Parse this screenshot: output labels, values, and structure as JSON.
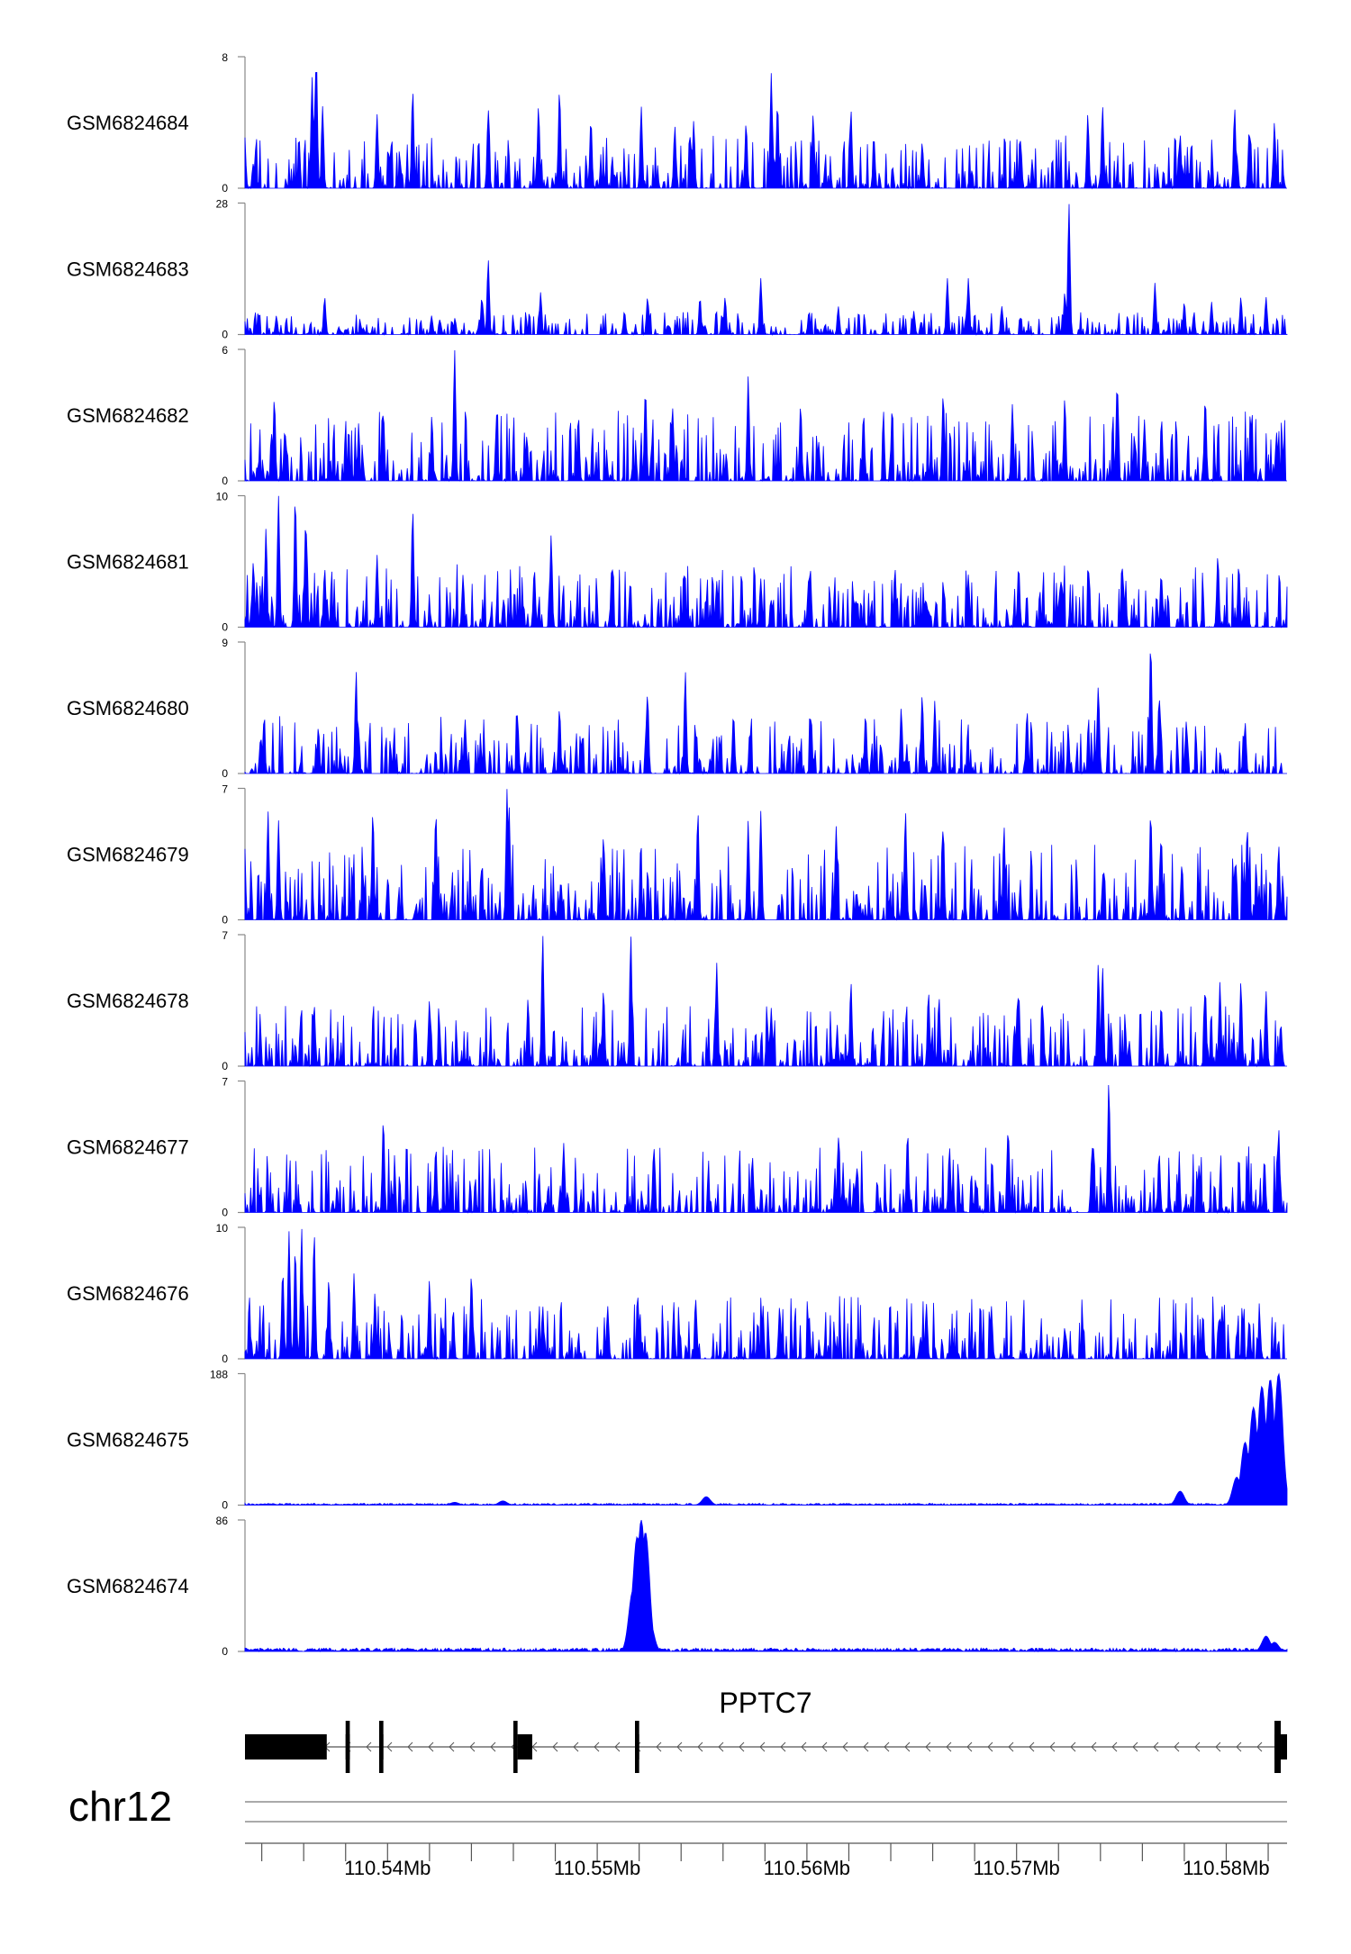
{
  "chart_data": {
    "type": "area",
    "title": "",
    "fill_color": "#0000ff",
    "x_unit": "Mb",
    "xlim": [
      110.5332,
      110.5829
    ],
    "tracks": [
      {
        "name": "GSM6824684",
        "ymax": 8,
        "ymin": 0,
        "ymax_label": "8",
        "ymin_label": "0",
        "peaks": [
          [
            110.5366,
            8.0
          ],
          [
            110.5364,
            6.8
          ],
          [
            110.5369,
            5.0
          ],
          [
            110.5365,
            4.7
          ],
          [
            110.5337,
            2.0
          ],
          [
            110.5412,
            6.0
          ],
          [
            110.5395,
            4.5
          ],
          [
            110.5448,
            4.8
          ],
          [
            110.5482,
            6.0
          ],
          [
            110.5472,
            5.0
          ],
          [
            110.5497,
            4.2
          ],
          [
            110.5521,
            5.0
          ],
          [
            110.5537,
            3.8
          ],
          [
            110.5546,
            4.1
          ],
          [
            110.5571,
            4.0
          ],
          [
            110.5583,
            7.0
          ],
          [
            110.5586,
            5.2
          ],
          [
            110.5603,
            4.5
          ],
          [
            110.5621,
            4.8
          ],
          [
            110.5632,
            3.0
          ],
          [
            110.5655,
            2.8
          ],
          [
            110.5702,
            2.6
          ],
          [
            110.5741,
            5.0
          ],
          [
            110.5734,
            4.5
          ],
          [
            110.5778,
            3.3
          ],
          [
            110.5804,
            4.9
          ],
          [
            110.5811,
            3.6
          ],
          [
            110.5823,
            4.0
          ]
        ],
        "noise_level": 2.0
      },
      {
        "name": "GSM6824683",
        "ymax": 28,
        "ymin": 0,
        "ymax_label": "28",
        "ymin_label": "0",
        "peaks": [
          [
            110.5725,
            28.0
          ],
          [
            110.5723,
            9.0
          ],
          [
            110.5524,
            8.0
          ],
          [
            110.5549,
            8.0
          ],
          [
            110.5561,
            8.0
          ],
          [
            110.5513,
            5.0
          ],
          [
            110.5347,
            4.0
          ],
          [
            110.537,
            8.0
          ],
          [
            110.5448,
            16.0
          ],
          [
            110.5445,
            8.0
          ],
          [
            110.5421,
            4.0
          ],
          [
            110.5473,
            9.0
          ],
          [
            110.5578,
            12.0
          ],
          [
            110.5601,
            5.0
          ],
          [
            110.5615,
            6.0
          ],
          [
            110.5651,
            5.0
          ],
          [
            110.5667,
            12.0
          ],
          [
            110.5677,
            12.0
          ],
          [
            110.5693,
            6.0
          ],
          [
            110.5766,
            11.0
          ],
          [
            110.578,
            7.0
          ],
          [
            110.5793,
            7.0
          ],
          [
            110.5807,
            8.0
          ],
          [
            110.5819,
            8.0
          ]
        ],
        "noise_level": 3.0
      },
      {
        "name": "GSM6824682",
        "ymax": 6,
        "ymin": 0,
        "ymax_label": "6",
        "ymin_label": "0",
        "peaks": [
          [
            110.5432,
            6.0
          ],
          [
            110.5346,
            3.8
          ],
          [
            110.5398,
            3.2
          ],
          [
            110.5452,
            3.0
          ],
          [
            110.5491,
            3.0
          ],
          [
            110.5523,
            4.2
          ],
          [
            110.5536,
            3.3
          ],
          [
            110.5572,
            4.8
          ],
          [
            110.5597,
            3.5
          ],
          [
            110.5627,
            3.1
          ],
          [
            110.5665,
            4.0
          ],
          [
            110.5698,
            3.5
          ],
          [
            110.5723,
            3.8
          ],
          [
            110.5748,
            4.5
          ],
          [
            110.5761,
            2.8
          ],
          [
            110.579,
            3.8
          ],
          [
            110.5812,
            2.5
          ],
          [
            110.5824,
            2.2
          ]
        ],
        "noise_level": 2.0
      },
      {
        "name": "GSM6824681",
        "ymax": 10,
        "ymin": 0,
        "ymax_label": "10",
        "ymin_label": "0",
        "peaks": [
          [
            110.5348,
            10.0
          ],
          [
            110.5356,
            10.0
          ],
          [
            110.5342,
            7.5
          ],
          [
            110.5361,
            8.2
          ],
          [
            110.5336,
            5.0
          ],
          [
            110.537,
            4.5
          ],
          [
            110.5412,
            9.0
          ],
          [
            110.5395,
            5.5
          ],
          [
            110.5436,
            4.0
          ],
          [
            110.5478,
            7.0
          ],
          [
            110.547,
            4.5
          ],
          [
            110.5507,
            4.8
          ],
          [
            110.5557,
            3.5
          ],
          [
            110.5578,
            3.7
          ],
          [
            110.5601,
            4.1
          ],
          [
            110.5642,
            4.5
          ],
          [
            110.5677,
            4.0
          ],
          [
            110.5701,
            4.7
          ],
          [
            110.5721,
            3.5
          ],
          [
            110.5769,
            4.1
          ],
          [
            110.5796,
            5.5
          ],
          [
            110.5806,
            4.8
          ],
          [
            110.5752,
            2.0
          ]
        ],
        "noise_level": 3.0
      },
      {
        "name": "GSM6824680",
        "ymax": 9,
        "ymin": 0,
        "ymax_label": "9",
        "ymin_label": "0",
        "peaks": [
          [
            110.5385,
            7.0
          ],
          [
            110.5341,
            3.5
          ],
          [
            110.5367,
            3.2
          ],
          [
            110.5437,
            3.7
          ],
          [
            110.5462,
            4.0
          ],
          [
            110.5482,
            4.5
          ],
          [
            110.5524,
            5.5
          ],
          [
            110.5542,
            7.0
          ],
          [
            110.5565,
            4.1
          ],
          [
            110.5602,
            4.0
          ],
          [
            110.5628,
            4.1
          ],
          [
            110.5645,
            4.5
          ],
          [
            110.5655,
            5.4
          ],
          [
            110.5661,
            5.0
          ],
          [
            110.5705,
            4.3
          ],
          [
            110.5739,
            6.0
          ],
          [
            110.5764,
            9.0
          ],
          [
            110.5768,
            5.3
          ],
          [
            110.5781,
            3.6
          ],
          [
            110.5809,
            3.5
          ]
        ],
        "noise_level": 2.5
      },
      {
        "name": "GSM6824679",
        "ymax": 7,
        "ymin": 0,
        "ymax_label": "7",
        "ymin_label": "0",
        "peaks": [
          [
            110.5457,
            7.0
          ],
          [
            110.5458,
            6.0
          ],
          [
            110.5343,
            5.8
          ],
          [
            110.5348,
            5.3
          ],
          [
            110.5393,
            5.8
          ],
          [
            110.5423,
            5.8
          ],
          [
            110.5503,
            4.5
          ],
          [
            110.5548,
            5.8
          ],
          [
            110.5572,
            5.3
          ],
          [
            110.5578,
            5.8
          ],
          [
            110.5614,
            5.0
          ],
          [
            110.5647,
            5.8
          ],
          [
            110.5665,
            5.0
          ],
          [
            110.5694,
            5.0
          ],
          [
            110.5764,
            5.8
          ],
          [
            110.5769,
            4.5
          ],
          [
            110.581,
            5.0
          ],
          [
            110.5825,
            4.0
          ]
        ],
        "noise_level": 2.5
      },
      {
        "name": "GSM6824678",
        "ymax": 7,
        "ymin": 0,
        "ymax_label": "7",
        "ymin_label": "0",
        "peaks": [
          [
            110.5474,
            7.0
          ],
          [
            110.5516,
            7.0
          ],
          [
            110.5557,
            5.5
          ],
          [
            110.5365,
            3.3
          ],
          [
            110.542,
            3.5
          ],
          [
            110.5467,
            3.6
          ],
          [
            110.5503,
            4.1
          ],
          [
            110.5583,
            3.1
          ],
          [
            110.5621,
            4.5
          ],
          [
            110.5658,
            4.0
          ],
          [
            110.5663,
            3.7
          ],
          [
            110.5701,
            4.0
          ],
          [
            110.5739,
            5.5
          ],
          [
            110.5741,
            5.3
          ],
          [
            110.5769,
            3.3
          ],
          [
            110.579,
            4.2
          ],
          [
            110.5797,
            4.5
          ],
          [
            110.5807,
            4.5
          ],
          [
            110.5819,
            4.0
          ],
          [
            110.5826,
            2.3
          ]
        ],
        "noise_level": 2.0
      },
      {
        "name": "GSM6824677",
        "ymax": 7,
        "ymin": 0,
        "ymax_label": "7",
        "ymin_label": "0",
        "peaks": [
          [
            110.5744,
            7.0
          ],
          [
            110.5398,
            5.0
          ],
          [
            110.5423,
            3.5
          ],
          [
            110.5484,
            3.7
          ],
          [
            110.5527,
            3.5
          ],
          [
            110.5574,
            3.0
          ],
          [
            110.5615,
            4.0
          ],
          [
            110.5648,
            4.3
          ],
          [
            110.5668,
            3.5
          ],
          [
            110.5696,
            4.5
          ],
          [
            110.5736,
            3.5
          ],
          [
            110.5768,
            3.2
          ],
          [
            110.5787,
            2.5
          ],
          [
            110.5825,
            4.5
          ]
        ],
        "noise_level": 2.2
      },
      {
        "name": "GSM6824676",
        "ymax": 10,
        "ymin": 0,
        "ymax_label": "10",
        "ymin_label": "0",
        "peaks": [
          [
            110.5359,
            10.0
          ],
          [
            110.5353,
            9.7
          ],
          [
            110.5356,
            8.5
          ],
          [
            110.5365,
            9.7
          ],
          [
            110.535,
            6.8
          ],
          [
            110.5372,
            6.2
          ],
          [
            110.5384,
            6.5
          ],
          [
            110.5394,
            5.0
          ],
          [
            110.542,
            6.0
          ],
          [
            110.544,
            6.5
          ],
          [
            110.5474,
            4.0
          ],
          [
            110.5505,
            4.0
          ],
          [
            110.5547,
            4.5
          ],
          [
            110.5587,
            4.0
          ],
          [
            110.5601,
            3.4
          ],
          [
            110.5657,
            4.2
          ],
          [
            110.5688,
            4.0
          ],
          [
            110.5723,
            2.4
          ],
          [
            110.5798,
            4.0
          ],
          [
            110.5811,
            3.0
          ]
        ],
        "noise_level": 3.0
      },
      {
        "name": "GSM6824675",
        "ymax": 188,
        "ymin": 0,
        "ymax_label": "188",
        "ymin_label": "0",
        "peaks": [
          [
            110.5825,
            188.0
          ],
          [
            110.5821,
            180.0
          ],
          [
            110.5817,
            170.0
          ],
          [
            110.5813,
            140.0
          ],
          [
            110.5809,
            90.0
          ],
          [
            110.5805,
            40.0
          ],
          [
            110.5778,
            20.0
          ],
          [
            110.5552,
            12.0
          ],
          [
            110.5455,
            6.0
          ],
          [
            110.5432,
            4.0
          ]
        ],
        "noise_level": 2.5
      },
      {
        "name": "GSM6824674",
        "ymax": 86,
        "ymin": 0,
        "ymax_label": "86",
        "ymin_label": "0",
        "peaks": [
          [
            110.5521,
            86.0
          ],
          [
            110.5519,
            75.0
          ],
          [
            110.5523,
            78.0
          ],
          [
            110.5517,
            40.0
          ],
          [
            110.5525,
            20.0
          ],
          [
            110.5819,
            10.0
          ],
          [
            110.5823,
            6.0
          ]
        ],
        "noise_level": 2.2
      }
    ],
    "gene": {
      "name": "PPTC7",
      "strand": "-",
      "span": [
        110.5332,
        110.5829
      ],
      "exons": [
        [
          110.5332,
          110.5371
        ],
        [
          110.538,
          110.5382
        ],
        [
          110.5396,
          110.5398
        ],
        [
          110.546,
          110.5462
        ],
        [
          110.5462,
          110.5469
        ],
        [
          110.5518,
          110.552
        ],
        [
          110.5823,
          110.5826
        ],
        [
          110.5826,
          110.5829
        ]
      ],
      "tall_exons": [
        [
          110.538,
          110.5382
        ],
        [
          110.5396,
          110.5398
        ],
        [
          110.546,
          110.5462
        ],
        [
          110.5518,
          110.552
        ],
        [
          110.5823,
          110.5826
        ]
      ]
    },
    "chromosome": "chr12",
    "x_ticks": [
      {
        "value": 110.54,
        "label": "110.54Mb"
      },
      {
        "value": 110.55,
        "label": "110.55Mb"
      },
      {
        "value": 110.56,
        "label": "110.56Mb"
      },
      {
        "value": 110.57,
        "label": "110.57Mb"
      },
      {
        "value": 110.58,
        "label": "110.58Mb"
      }
    ],
    "minor_tick_step": 0.002
  }
}
